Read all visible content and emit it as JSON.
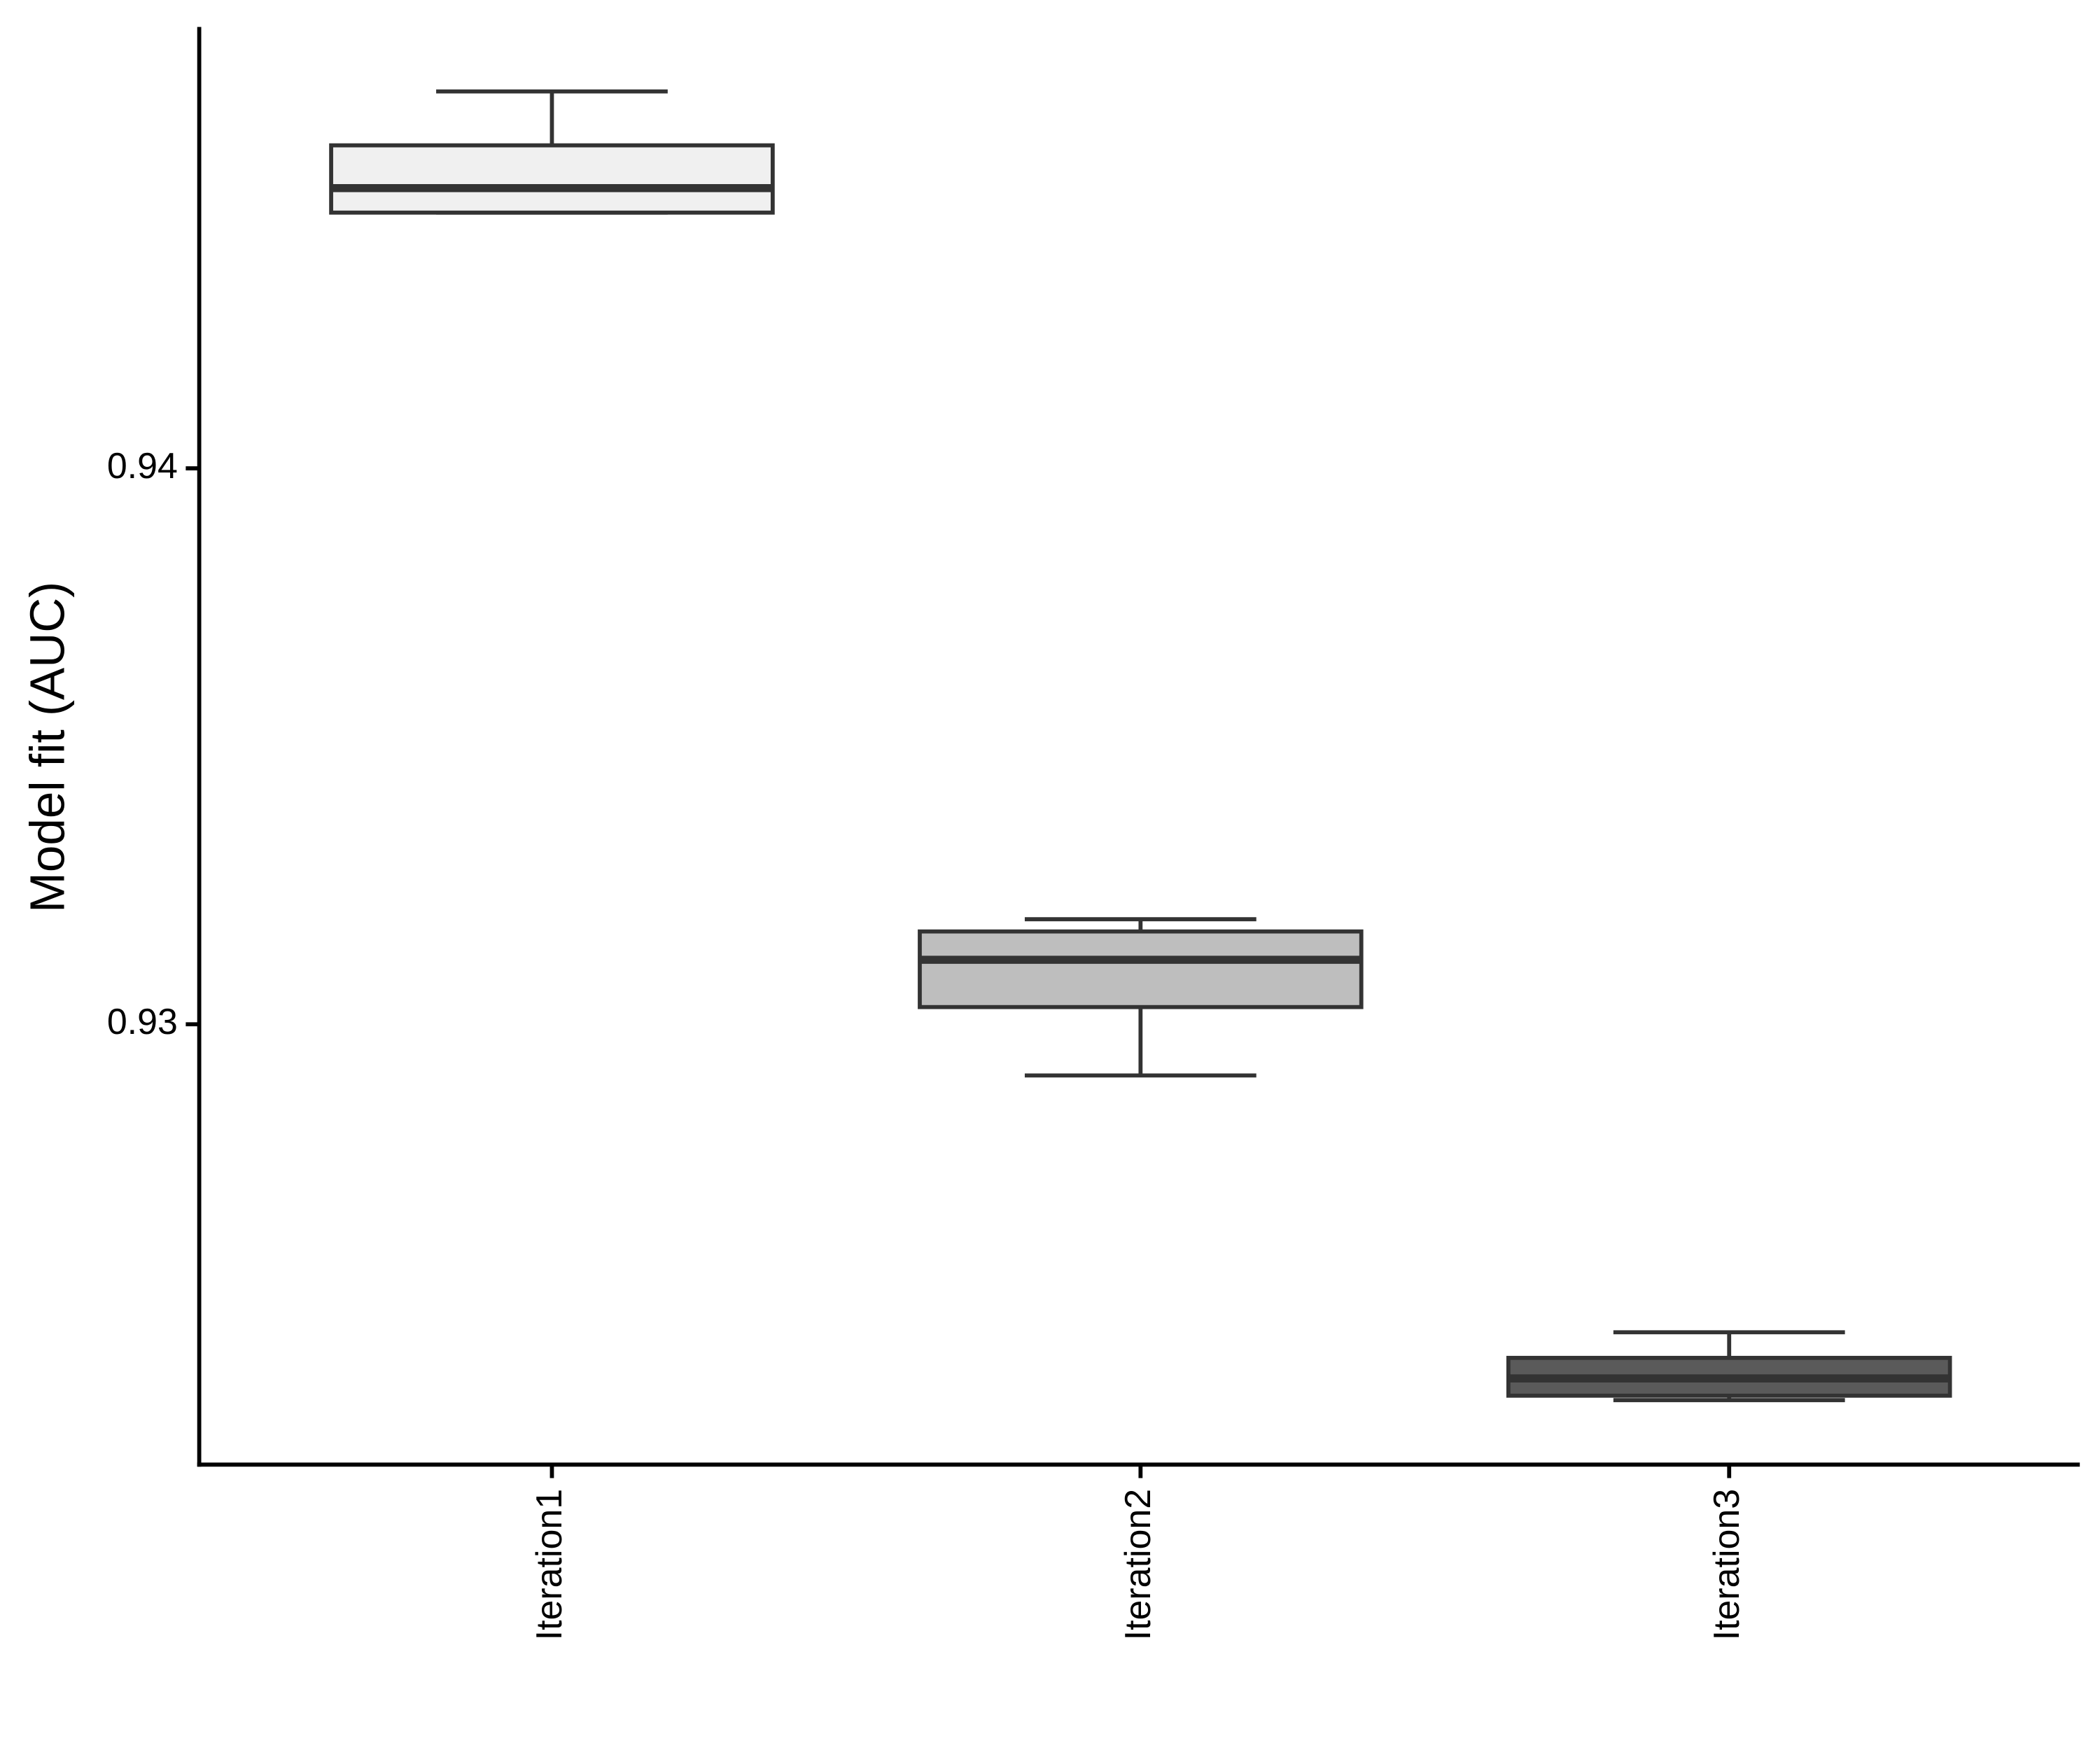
{
  "chart_data": {
    "type": "box",
    "y_label": "Model fit (AUC)",
    "categories": [
      "Iteration1",
      "Iteration2",
      "Iteration3"
    ],
    "colors": [
      "#f0f0f0",
      "#bebebe",
      "#5a5a5a"
    ],
    "whisker_low": [
      0.9446,
      0.92908,
      0.92324
    ],
    "q1": [
      0.9446,
      0.93031,
      0.92332
    ],
    "median": [
      0.94504,
      0.93116,
      0.92363
    ],
    "q3": [
      0.94581,
      0.93167,
      0.924
    ],
    "whisker_high": [
      0.94678,
      0.93189,
      0.92446
    ],
    "ylim": [
      0.92208,
      0.94794
    ],
    "yticks": [
      0.93,
      0.94
    ],
    "grid": false
  }
}
